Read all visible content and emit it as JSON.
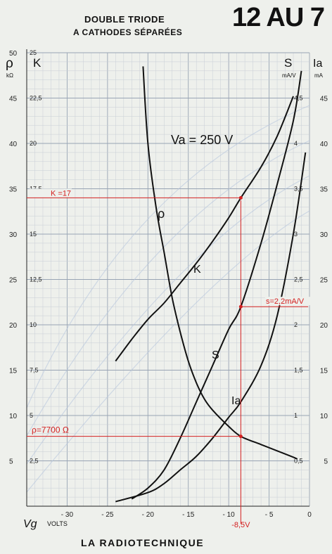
{
  "header": {
    "title_line1": "DOUBLE TRIODE",
    "title_line2": "A CATHODES SÉPARÉES",
    "tube": "12 AU 7"
  },
  "footer": {
    "brand": "LA RADIOTECHNIQUE"
  },
  "chart_data": {
    "type": "line",
    "title": "DOUBLE TRIODE A CATHODES SÉPARÉES — 12 AU 7",
    "condition": "Va = 250 V",
    "xlabel": "Vg",
    "xunit": "VOLTS",
    "xlim": [
      -35,
      0
    ],
    "x_ticks": [
      "- 30",
      "- 25",
      "- 20",
      "- 15",
      "- 10",
      "- 5",
      "0"
    ],
    "left_axes": [
      {
        "label": "ρ",
        "unit": "kΩ",
        "lim": [
          0,
          50
        ],
        "ticks": [
          "5",
          "10",
          "15",
          "20",
          "25",
          "30",
          "35",
          "40",
          "45",
          "50"
        ]
      },
      {
        "label": "K",
        "lim": [
          0,
          25
        ],
        "ticks": [
          "2,5",
          "5",
          "7,5",
          "10",
          "12,5",
          "15",
          "17,5",
          "20",
          "22,5",
          "25"
        ]
      }
    ],
    "right_axes": [
      {
        "label": "S",
        "unit": "mA/V",
        "lim": [
          0,
          5
        ],
        "ticks": [
          "0,5",
          "1",
          "1,5",
          "2",
          "2,5",
          "3",
          "3,5",
          "4",
          "4,5"
        ]
      },
      {
        "label": "Ia",
        "unit": "mA",
        "lim": [
          0,
          50
        ],
        "ticks": [
          "5",
          "10",
          "15",
          "20",
          "25",
          "30",
          "35",
          "40",
          "45"
        ]
      }
    ],
    "grid": true,
    "series": [
      {
        "name": "ρ",
        "unit": "kΩ",
        "x": [
          -20.6,
          -20,
          -19,
          -18,
          -17,
          -16,
          -15,
          -14,
          -13,
          -12,
          -10,
          -8.5,
          -6,
          -4,
          -2,
          -1.5
        ],
        "y": [
          48.5,
          40,
          33,
          28,
          23,
          19.2,
          16,
          13.6,
          11.8,
          10.6,
          8.8,
          7.7,
          6.8,
          6.1,
          5.4,
          5.2
        ]
      },
      {
        "name": "K",
        "x": [
          -24,
          -22,
          -20,
          -18,
          -16,
          -14,
          -12,
          -10,
          -8.5,
          -6,
          -4,
          -2
        ],
        "y": [
          8,
          9.2,
          10.3,
          11.2,
          12.3,
          13.4,
          14.6,
          15.9,
          17,
          18.7,
          20.4,
          22.6
        ]
      },
      {
        "name": "S",
        "unit": "mA/V",
        "x": [
          -22,
          -20,
          -18,
          -16,
          -14,
          -12,
          -10,
          -8.5,
          -6,
          -4,
          -2,
          -1
        ],
        "y": [
          0.08,
          0.2,
          0.4,
          0.75,
          1.15,
          1.55,
          1.95,
          2.2,
          2.9,
          3.55,
          4.25,
          4.8
        ]
      },
      {
        "name": "Ia",
        "unit": "mA",
        "x": [
          -24,
          -20,
          -18,
          -16,
          -14,
          -12,
          -10,
          -8.5,
          -6,
          -4,
          -2,
          -0.5
        ],
        "y": [
          0.5,
          1.5,
          2.5,
          4,
          5.5,
          7.5,
          9.8,
          11.5,
          15.5,
          21,
          30,
          39
        ]
      }
    ],
    "annotations": [
      {
        "label": "K =17",
        "x": -8.5,
        "K": 17
      },
      {
        "label": "s=2,2mA/V",
        "x": -8.5,
        "S": 2.2
      },
      {
        "label": "ρ=7700 Ω",
        "x": -8.5,
        "rho": 7.7
      },
      {
        "label": "-8,5V",
        "x": -8.5
      }
    ]
  }
}
